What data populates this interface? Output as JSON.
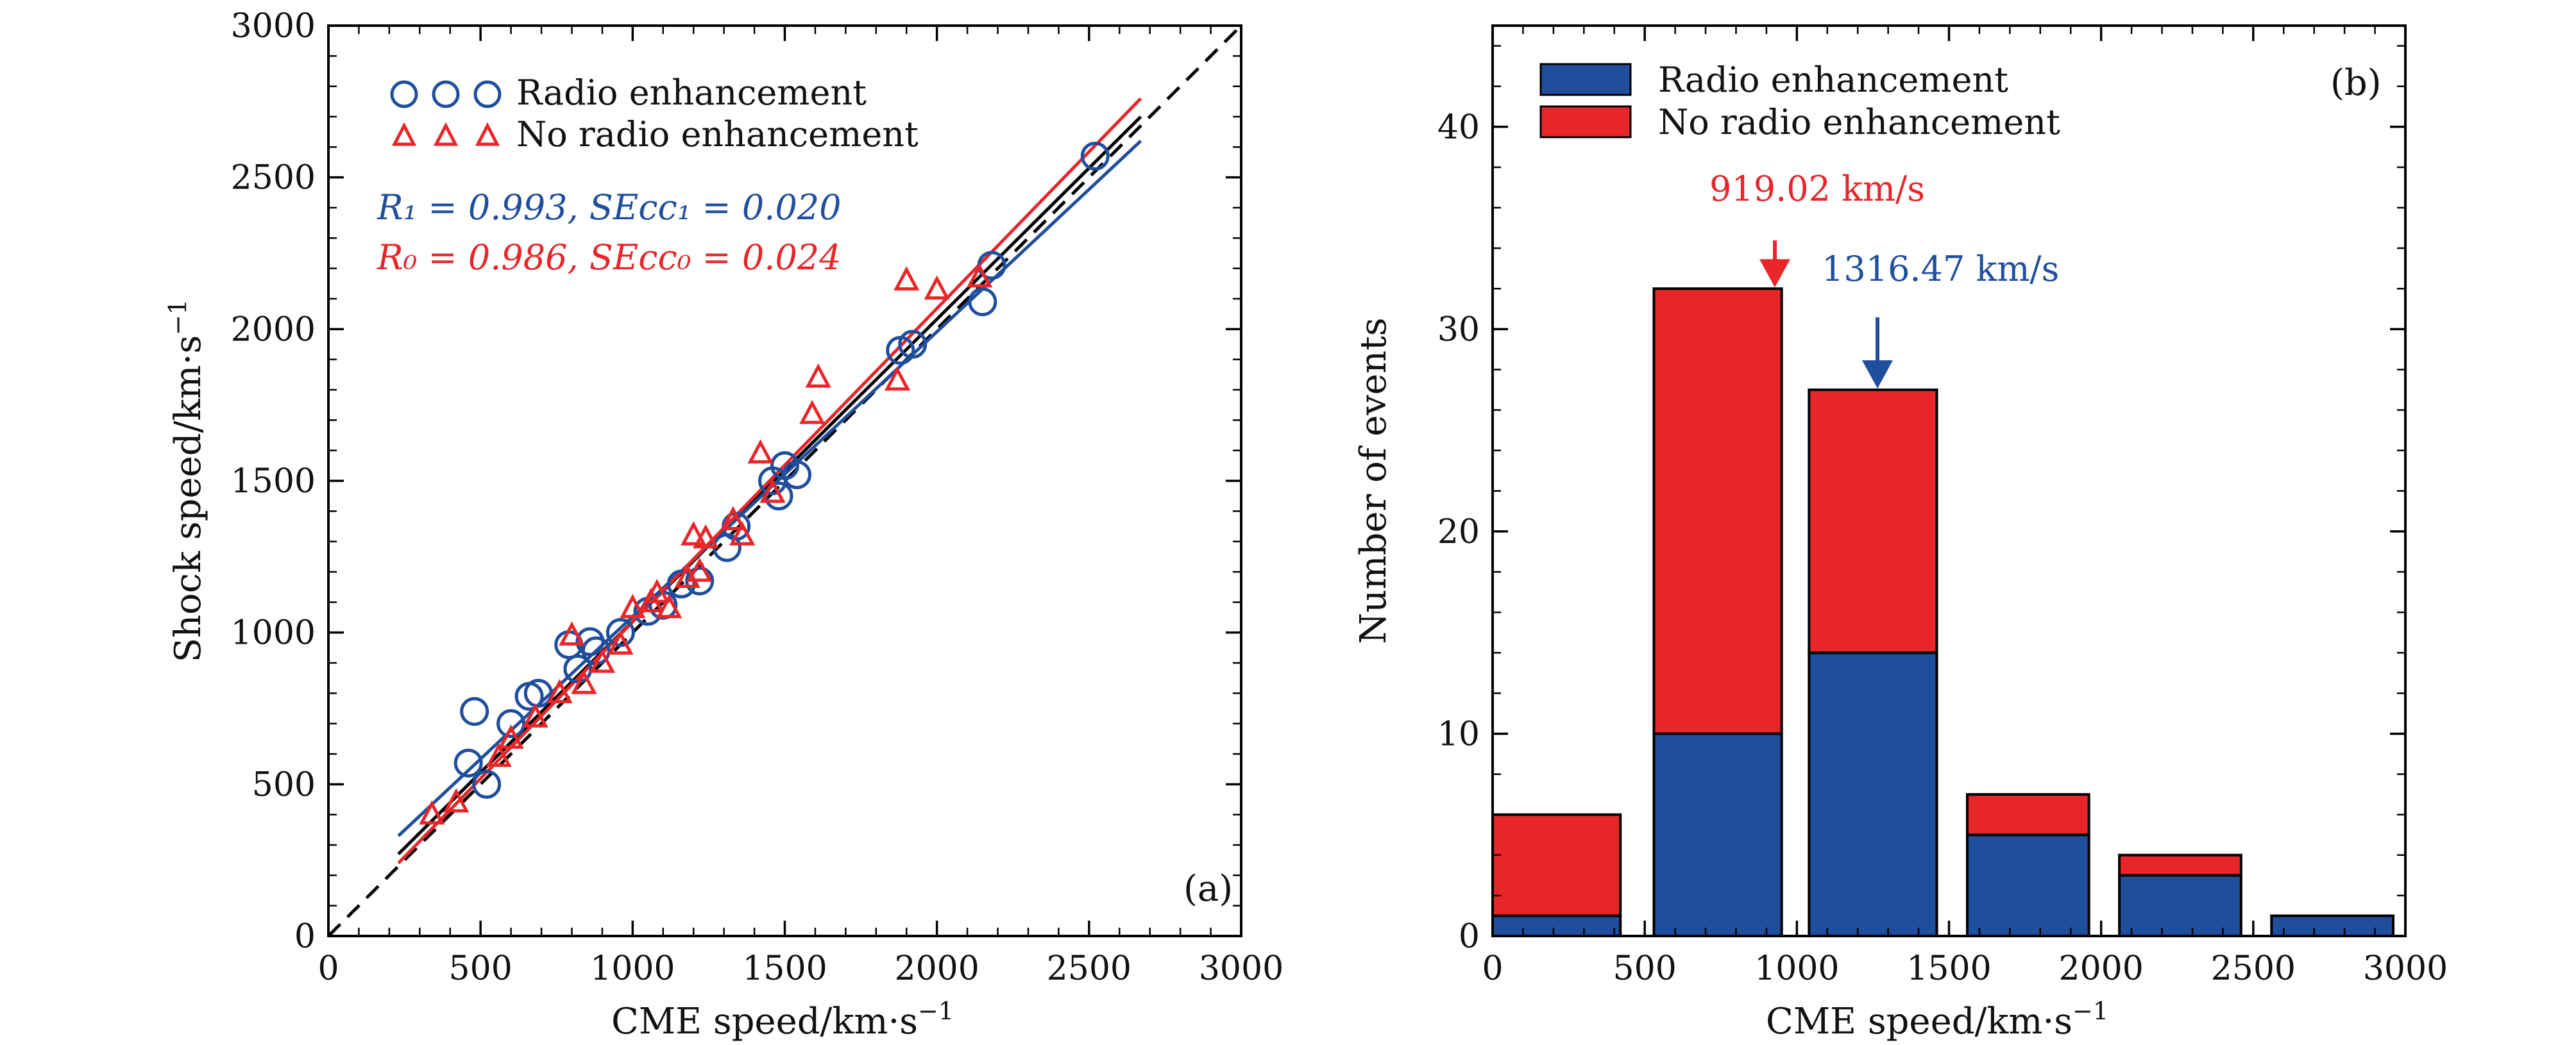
{
  "chart_data": [
    {
      "type": "scatter",
      "panel_label": "(a)",
      "xlabel": "CME speed/km·s",
      "xlabel_sup": "−1",
      "ylabel": "Shock speed/km·s",
      "ylabel_sup": "−1",
      "xlim": [
        0,
        3000
      ],
      "ylim": [
        0,
        3000
      ],
      "xticks": [
        "0",
        "500",
        "1000",
        "1500",
        "2000",
        "2500",
        "3000"
      ],
      "yticks": [
        "0",
        "500",
        "1000",
        "1500",
        "2000",
        "2500",
        "3000"
      ],
      "legend_position": "top-left",
      "stats": [
        {
          "text": "R₁ = 0.993,  SEcc₁ = 0.020",
          "color": "#1f4e9c"
        },
        {
          "text": "R₀ = 0.986,  SEcc₀ = 0.024",
          "color": "#e8262a"
        }
      ],
      "series": [
        {
          "name": "Radio enhancement",
          "marker": "circle",
          "color": "#1f4e9c",
          "points": [
            [
              480,
              740
            ],
            [
              460,
              570
            ],
            [
              520,
              500
            ],
            [
              600,
              700
            ],
            [
              660,
              790
            ],
            [
              690,
              800
            ],
            [
              790,
              960
            ],
            [
              860,
              970
            ],
            [
              880,
              940
            ],
            [
              820,
              880
            ],
            [
              960,
              1000
            ],
            [
              1050,
              1070
            ],
            [
              1100,
              1090
            ],
            [
              1160,
              1160
            ],
            [
              1220,
              1170
            ],
            [
              1310,
              1280
            ],
            [
              1340,
              1350
            ],
            [
              1460,
              1500
            ],
            [
              1480,
              1450
            ],
            [
              1500,
              1550
            ],
            [
              1540,
              1520
            ],
            [
              1880,
              1930
            ],
            [
              1920,
              1950
            ],
            [
              2150,
              2090
            ],
            [
              2180,
              2210
            ],
            [
              2520,
              2570
            ]
          ]
        },
        {
          "name": "No radio enhancement",
          "marker": "triangle",
          "color": "#e8262a",
          "points": [
            [
              340,
              400
            ],
            [
              420,
              440
            ],
            [
              560,
              590
            ],
            [
              600,
              650
            ],
            [
              680,
              720
            ],
            [
              760,
              800
            ],
            [
              800,
              990
            ],
            [
              840,
              830
            ],
            [
              900,
              900
            ],
            [
              960,
              960
            ],
            [
              1000,
              1080
            ],
            [
              1060,
              1100
            ],
            [
              1080,
              1130
            ],
            [
              1120,
              1080
            ],
            [
              1180,
              1180
            ],
            [
              1200,
              1320
            ],
            [
              1220,
              1200
            ],
            [
              1240,
              1310
            ],
            [
              1330,
              1370
            ],
            [
              1360,
              1320
            ],
            [
              1420,
              1590
            ],
            [
              1460,
              1460
            ],
            [
              1590,
              1720
            ],
            [
              1610,
              1840
            ],
            [
              1870,
              1830
            ],
            [
              1900,
              2160
            ],
            [
              2000,
              2130
            ],
            [
              2140,
              2170
            ]
          ]
        }
      ],
      "lines": [
        {
          "label": "y = x",
          "style": "dashed",
          "color": "#000000",
          "x": [
            0,
            3000
          ],
          "y": [
            0,
            3000
          ]
        },
        {
          "label": "overall fit",
          "style": "solid",
          "color": "#000000",
          "x": [
            230,
            2670
          ],
          "y": [
            270,
            2700
          ]
        },
        {
          "label": "radio enhancement fit",
          "style": "solid",
          "color": "#1f4e9c",
          "x": [
            230,
            2670
          ],
          "y": [
            330,
            2620
          ]
        },
        {
          "label": "no radio enhancement fit",
          "style": "solid",
          "color": "#e8262a",
          "x": [
            230,
            2670
          ],
          "y": [
            240,
            2760
          ]
        }
      ]
    },
    {
      "type": "bar",
      "stacked": true,
      "panel_label": "(b)",
      "xlabel": "CME speed/km·s",
      "xlabel_sup": "−1",
      "ylabel": "Number of events",
      "xlim": [
        0,
        3000
      ],
      "ylim": [
        0,
        45
      ],
      "xticks": [
        "0",
        "500",
        "1000",
        "1500",
        "2000",
        "2500",
        "3000"
      ],
      "yticks": [
        "0",
        "10",
        "20",
        "30",
        "40"
      ],
      "legend_position": "top-left",
      "bin_edges": [
        [
          0,
          420
        ],
        [
          530,
          950
        ],
        [
          1040,
          1460
        ],
        [
          1560,
          1960
        ],
        [
          2060,
          2460
        ],
        [
          2560,
          2960
        ]
      ],
      "series": [
        {
          "name": "Radio enhancement",
          "color": "#1f4e9c",
          "values": [
            1,
            10,
            14,
            5,
            3,
            1
          ]
        },
        {
          "name": "No radio enhancement",
          "color": "#e8262a",
          "values": [
            5,
            22,
            13,
            2,
            1,
            0
          ]
        }
      ],
      "annotations": [
        {
          "text": "919.02 km/s",
          "color": "#e8262a",
          "x": 919.02,
          "arrow_to_y": 32
        },
        {
          "text": "1316.47 km/s",
          "color": "#1f4e9c",
          "x": 1316.47,
          "arrow_to_y": 27
        }
      ]
    }
  ]
}
